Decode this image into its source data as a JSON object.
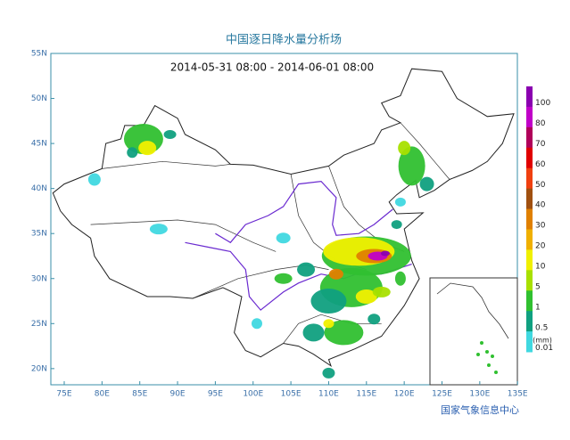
{
  "title": "中国逐日降水量分析场",
  "subtitle": "2014-05-31 08:00 - 2014-06-01 08:00",
  "lat_labels": [
    "55N",
    "50N",
    "45N",
    "40N",
    "35N",
    "30N",
    "25N",
    "20N"
  ],
  "lon_labels": [
    "75E",
    "80E",
    "85E",
    "90E",
    "95E",
    "100E",
    "105E",
    "110E",
    "115E",
    "120E",
    "125E",
    "130E",
    "135E"
  ],
  "legend": {
    "unit": "(mm)",
    "items": [
      {
        "label": "100",
        "color": "#8a00b0"
      },
      {
        "label": "80",
        "color": "#c000c8"
      },
      {
        "label": "70",
        "color": "#b0005a"
      },
      {
        "label": "60",
        "color": "#e00000"
      },
      {
        "label": "50",
        "color": "#f04010"
      },
      {
        "label": "40",
        "color": "#a05010"
      },
      {
        "label": "30",
        "color": "#e08000"
      },
      {
        "label": "20",
        "color": "#f0b000"
      },
      {
        "label": "10",
        "color": "#f0f000"
      },
      {
        "label": "5",
        "color": "#a8e000"
      },
      {
        "label": "1",
        "color": "#30c030"
      },
      {
        "label": "0.5",
        "color": "#10a080"
      },
      {
        "label": "0.01",
        "color": "#40d8e0"
      }
    ]
  },
  "footer": "国家气象信息中心"
}
